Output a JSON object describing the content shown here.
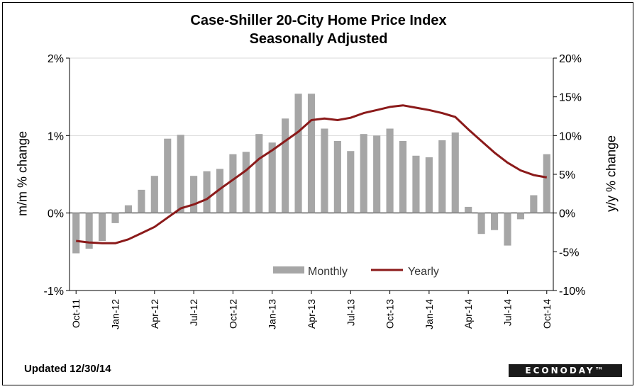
{
  "footer": {
    "updated": "Updated 12/30/14",
    "logo": "ECONODAY™"
  },
  "chart_data": {
    "type": "bar+line",
    "title": "Case-Shiller 20-City Home Price Index",
    "subtitle": "Seasonally Adjusted",
    "ylabel_left": "m/m % change",
    "ylabel_right": "y/y % change",
    "ylim_left": [
      -1,
      2
    ],
    "ylim_right": [
      -10,
      20
    ],
    "yticks_left": [
      "2%",
      "1%",
      "0%",
      "-1%"
    ],
    "yticks_right": [
      "20%",
      "15%",
      "10%",
      "5%",
      "0%",
      "-5%",
      "-10%"
    ],
    "xtick_labels": [
      "Oct-11",
      "Jan-12",
      "Apr-12",
      "Jul-12",
      "Oct-12",
      "Jan-13",
      "Apr-13",
      "Jul-13",
      "Oct-13",
      "Jan-14",
      "Apr-14",
      "Jul-14",
      "Oct-14"
    ],
    "legend": {
      "placement": "bottom-center",
      "entries": [
        "Monthly",
        "Yearly"
      ]
    },
    "categories": [
      "Oct-11",
      "Nov-11",
      "Dec-11",
      "Jan-12",
      "Feb-12",
      "Mar-12",
      "Apr-12",
      "May-12",
      "Jun-12",
      "Jul-12",
      "Aug-12",
      "Sep-12",
      "Oct-12",
      "Nov-12",
      "Dec-12",
      "Jan-13",
      "Feb-13",
      "Mar-13",
      "Apr-13",
      "May-13",
      "Jun-13",
      "Jul-13",
      "Aug-13",
      "Sep-13",
      "Oct-13",
      "Nov-13",
      "Dec-13",
      "Jan-14",
      "Feb-14",
      "Mar-14",
      "Apr-14",
      "May-14",
      "Jun-14",
      "Jul-14",
      "Aug-14",
      "Sep-14",
      "Oct-14"
    ],
    "series": [
      {
        "name": "Monthly",
        "type": "bar",
        "axis": "left",
        "color": "#a6a6a6",
        "values": [
          -0.52,
          -0.46,
          -0.36,
          -0.13,
          0.1,
          0.3,
          0.48,
          0.96,
          1.01,
          0.48,
          0.54,
          0.57,
          0.76,
          0.79,
          1.02,
          0.91,
          1.22,
          1.54,
          1.54,
          1.09,
          0.93,
          0.8,
          1.02,
          1.0,
          1.09,
          0.93,
          0.74,
          0.72,
          0.94,
          1.04,
          0.08,
          -0.27,
          -0.22,
          -0.42,
          -0.08,
          0.23,
          0.76
        ]
      },
      {
        "name": "Yearly",
        "type": "line",
        "axis": "right",
        "color": "#8b1a1a",
        "values": [
          -3.6,
          -3.8,
          -3.9,
          -3.9,
          -3.4,
          -2.6,
          -1.8,
          -0.6,
          0.6,
          1.1,
          1.8,
          3.1,
          4.3,
          5.5,
          7.0,
          8.1,
          9.3,
          10.5,
          12.0,
          12.2,
          12.0,
          12.3,
          12.9,
          13.3,
          13.7,
          13.9,
          13.6,
          13.3,
          12.9,
          12.4,
          10.8,
          9.3,
          7.8,
          6.5,
          5.5,
          4.9,
          4.6
        ]
      }
    ]
  }
}
